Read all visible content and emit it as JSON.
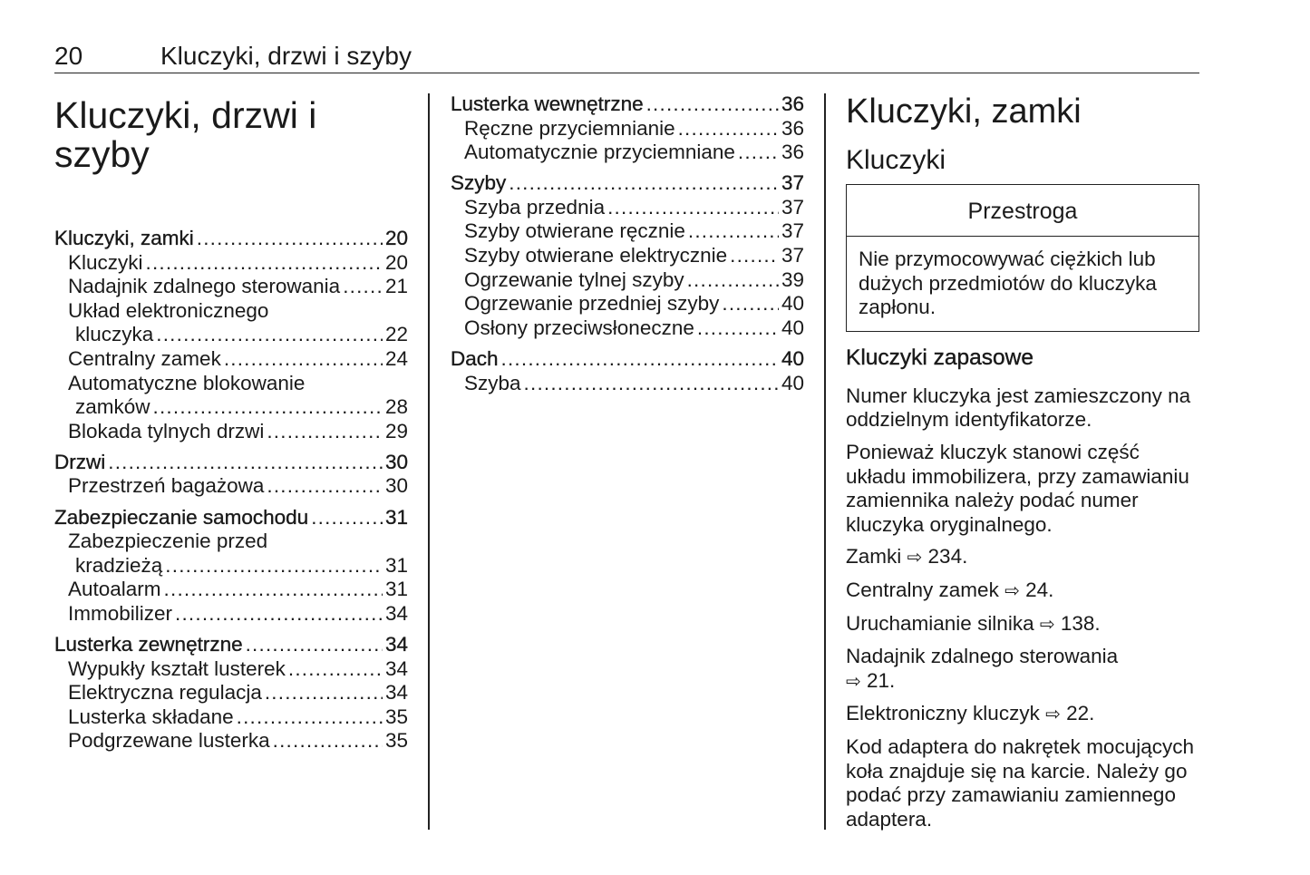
{
  "header": {
    "page_number": "20",
    "title": "Kluczyki, drzwi i szyby"
  },
  "main_title": "Kluczyki, drzwi i szyby",
  "toc_col1": [
    {
      "level": 1,
      "text": "Kluczyki, zamki",
      "page": "20"
    },
    {
      "level": 2,
      "text": "Kluczyki",
      "page": "20"
    },
    {
      "level": 2,
      "text": "Nadajnik zdalnego sterowania",
      "page": "21"
    },
    {
      "level": 2,
      "text": "Układ elektronicznego",
      "cont": "kluczyka",
      "page": "22"
    },
    {
      "level": 2,
      "text": "Centralny zamek",
      "page": "24"
    },
    {
      "level": 2,
      "text": "Automatyczne blokowanie",
      "cont": "zamków",
      "page": "28"
    },
    {
      "level": 2,
      "text": "Blokada tylnych drzwi",
      "page": "29"
    },
    {
      "level": 1,
      "text": "Drzwi",
      "page": "30"
    },
    {
      "level": 2,
      "text": "Przestrzeń bagażowa",
      "page": "30"
    },
    {
      "level": 1,
      "text": "Zabezpieczanie samochodu",
      "page": "31"
    },
    {
      "level": 2,
      "text": "Zabezpieczenie przed",
      "cont": "kradzieżą",
      "page": "31"
    },
    {
      "level": 2,
      "text": "Autoalarm",
      "page": "31"
    },
    {
      "level": 2,
      "text": "Immobilizer",
      "page": "34"
    },
    {
      "level": 1,
      "text": "Lusterka zewnętrzne",
      "page": "34"
    },
    {
      "level": 2,
      "text": "Wypukły kształt lusterek",
      "page": "34"
    },
    {
      "level": 2,
      "text": "Elektryczna regulacja",
      "page": "34"
    },
    {
      "level": 2,
      "text": "Lusterka składane",
      "page": "35"
    },
    {
      "level": 2,
      "text": "Podgrzewane lusterka",
      "page": "35"
    }
  ],
  "toc_col2": [
    {
      "level": 1,
      "text": "Lusterka wewnętrzne",
      "page": "36"
    },
    {
      "level": 2,
      "text": "Ręczne przyciemnianie",
      "page": "36"
    },
    {
      "level": 2,
      "text": "Automatycznie przyciemniane",
      "page": "36"
    },
    {
      "level": 1,
      "text": "Szyby",
      "page": "37"
    },
    {
      "level": 2,
      "text": "Szyba przednia",
      "page": "37"
    },
    {
      "level": 2,
      "text": "Szyby otwierane ręcznie",
      "page": "37"
    },
    {
      "level": 2,
      "text": "Szyby otwierane elektrycznie",
      "page": "37"
    },
    {
      "level": 2,
      "text": "Ogrzewanie tylnej szyby",
      "page": "39"
    },
    {
      "level": 2,
      "text": "Ogrzewanie przedniej szyby",
      "page": "40"
    },
    {
      "level": 2,
      "text": "Osłony przeciwsłoneczne",
      "page": "40"
    },
    {
      "level": 1,
      "text": "Dach",
      "page": "40"
    },
    {
      "level": 2,
      "text": "Szyba",
      "page": "40"
    }
  ],
  "section": {
    "title": "Kluczyki, zamki",
    "subtitle": "Kluczyki",
    "caution": {
      "heading": "Przestroga",
      "text": "Nie przymocowywać ciężkich lub dużych przedmiotów do kluczyka zapłonu."
    },
    "subsection": "Kluczyki zapasowe",
    "paragraphs": [
      {
        "text": "Numer kluczyka jest zamieszczony na oddzielnym identyfikatorze."
      },
      {
        "text": "Ponieważ kluczyk stanowi część układu immobilizera, przy zamawianiu zamiennika należy podać numer kluczyka oryginalnego."
      },
      {
        "text": "Zamki",
        "ref": "234."
      },
      {
        "text": "Centralny zamek",
        "ref": "24."
      },
      {
        "text": "Uruchamianie silnika",
        "ref": "138."
      },
      {
        "text": "Nadajnik zdalnego sterowania",
        "ref": "21.",
        "break": true
      },
      {
        "text": "Elektroniczny kluczyk",
        "ref": "22."
      },
      {
        "text": "Kod adaptera do nakrętek mocujących koła znajduje się na karcie. Należy go podać przy zamawianiu zamiennego adaptera."
      }
    ],
    "ref_icon": "arrow-right-outline-icon"
  }
}
